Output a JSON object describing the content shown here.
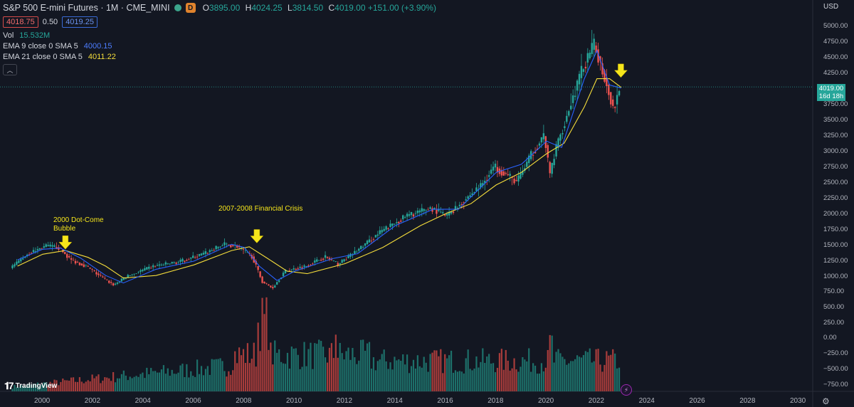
{
  "header": {
    "title": "S&P 500 E-mini Futures · 1M · CME_MINI",
    "o_label": "O",
    "o_value": "3895.00",
    "h_label": "H",
    "h_value": "4024.25",
    "l_label": "L",
    "l_value": "3814.50",
    "c_label": "C",
    "c_value": "4019.00",
    "change": "+151.00 (+3.90%)",
    "badge": "D"
  },
  "quote": {
    "bid": "4018.75",
    "spread": "0.50",
    "ask": "4019.25"
  },
  "indicators": {
    "vol_label": "Vol",
    "vol_value": "15.532M",
    "ema9_label": "EMA 9 close 0 SMA 5",
    "ema9_value": "4000.15",
    "ema21_label": "EMA 21 close 0 SMA 5",
    "ema21_value": "4011.22"
  },
  "price_axis": {
    "currency": "USD",
    "current_price": "4019.00",
    "countdown": "16d 18h",
    "ticks": [
      "5000.00",
      "4750.00",
      "4500.00",
      "4250.00",
      "3750.00",
      "3500.00",
      "3250.00",
      "3000.00",
      "2750.00",
      "2500.00",
      "2250.00",
      "2000.00",
      "1750.00",
      "1500.00",
      "1250.00",
      "1000.00",
      "750.00",
      "500.00",
      "250.00",
      "0.00",
      "−250.00",
      "−500.00",
      "−750.00"
    ]
  },
  "branding": {
    "name": "TradingView"
  },
  "colors": {
    "up": "#26a69a",
    "down": "#ef5350",
    "ema9": "#2962ff",
    "ema21": "#f5dd3b",
    "annotation": "#f5e51b",
    "background": "#131722"
  },
  "chart_data": {
    "type": "candlestick",
    "title": "S&P 500 E-mini Futures · 1M · CME_MINI",
    "xlabel": "",
    "ylabel": "",
    "x_ticks": [
      "2000",
      "2002",
      "2004",
      "2006",
      "2008",
      "2010",
      "2012",
      "2014",
      "2016",
      "2018",
      "2020",
      "2022",
      "2024",
      "2026",
      "2028",
      "2030"
    ],
    "ylim": [
      -850,
      5150
    ],
    "grid": false,
    "price_series": {
      "x": [
        1998.75,
        1999.5,
        2000.2,
        2000.7,
        2001.2,
        2001.8,
        2002.5,
        2002.9,
        2003.5,
        2004.5,
        2005.5,
        2006.5,
        2007.3,
        2007.8,
        2008.4,
        2008.8,
        2009.2,
        2009.7,
        2010.5,
        2011.3,
        2011.8,
        2012.5,
        2013.5,
        2014.5,
        2015.5,
        2016.1,
        2016.8,
        2017.5,
        2018.0,
        2018.9,
        2019.5,
        2020.0,
        2020.2,
        2020.5,
        2021.0,
        2021.5,
        2021.99,
        2022.4,
        2022.75,
        2022.96
      ],
      "close": [
        1100,
        1350,
        1470,
        1450,
        1250,
        1150,
        950,
        850,
        1000,
        1150,
        1220,
        1350,
        1500,
        1470,
        1300,
        900,
        800,
        1070,
        1150,
        1300,
        1180,
        1380,
        1700,
        1950,
        2080,
        1950,
        2200,
        2450,
        2750,
        2500,
        2950,
        3250,
        2600,
        3100,
        3700,
        4300,
        4700,
        4150,
        3650,
        4019
      ]
    },
    "ema9_series": {
      "x": [
        1999.0,
        2000.0,
        2000.7,
        2001.5,
        2002.5,
        2003.2,
        2004.5,
        2006.0,
        2007.5,
        2008.0,
        2008.6,
        2009.3,
        2010.0,
        2011.5,
        2012.5,
        2014.0,
        2015.5,
        2016.5,
        2018.0,
        2019.0,
        2020.0,
        2020.6,
        2021.5,
        2022.0,
        2022.5,
        2022.96
      ],
      "values": [
        1250,
        1420,
        1440,
        1280,
        1000,
        880,
        1100,
        1230,
        1500,
        1450,
        1150,
        920,
        1070,
        1270,
        1350,
        1800,
        2060,
        2060,
        2650,
        2780,
        3150,
        3050,
        4150,
        4600,
        4050,
        4000.15
      ]
    },
    "ema21_series": {
      "x": [
        1999.0,
        2000.0,
        2000.9,
        2001.8,
        2002.5,
        2003.2,
        2004.5,
        2006.0,
        2007.5,
        2008.2,
        2008.9,
        2009.7,
        2010.5,
        2012.0,
        2013.5,
        2015.0,
        2016.0,
        2017.0,
        2018.0,
        2019.0,
        2020.0,
        2020.7,
        2021.5,
        2022.0,
        2022.5,
        2022.96
      ],
      "values": [
        1150,
        1340,
        1400,
        1290,
        1150,
        960,
        1000,
        1170,
        1400,
        1460,
        1280,
        1070,
        1030,
        1190,
        1450,
        1800,
        1990,
        2150,
        2450,
        2650,
        2950,
        3120,
        3700,
        4150,
        4150,
        4011.22
      ]
    },
    "volume_axis_range": [
      0,
      3
    ],
    "volume_x_range": [
      1998.8,
      2023.0
    ],
    "annotations": [
      {
        "text_lines": [
          "2000 Dot-Come",
          "Bubble"
        ],
        "x": 2000.9,
        "y": 1500
      },
      {
        "text_lines": [
          "2007-2008 Financial Crisis"
        ],
        "x": 2008.5,
        "y": 1600
      },
      {
        "text_lines": [],
        "x": 2022.95,
        "y": 4250
      }
    ],
    "annotation_labels": {
      "dotcom_line1": "2000 Dot-Come",
      "dotcom_line2": "Bubble",
      "crisis": "2007-2008 Financial Crisis"
    }
  }
}
